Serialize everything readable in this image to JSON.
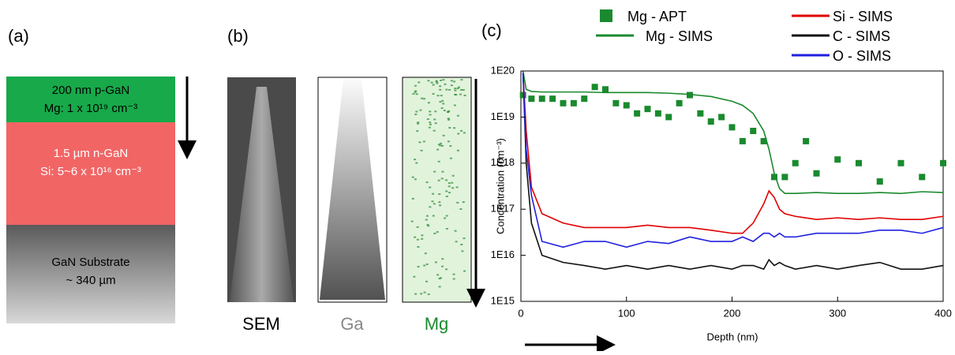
{
  "panel_a": {
    "label": "(a)",
    "layers": [
      {
        "name": "200 nm p-GaN",
        "doping": "Mg: 1 x 10¹⁹ cm⁻³"
      },
      {
        "name": "1.5 µm n-GaN",
        "doping": "Si: 5~6 x 10¹⁶ cm⁻³"
      },
      {
        "name": "GaN Substrate",
        "doping": "~ 340 µm"
      }
    ]
  },
  "panel_b": {
    "label": "(b)",
    "images": [
      "SEM",
      "Ga",
      "Mg"
    ]
  },
  "panel_c": {
    "label": "(c)"
  },
  "chart_data": {
    "type": "line",
    "log_y": true,
    "xlabel": "Depth (nm)",
    "ylabel": "Concentration (cm⁻³)",
    "xlim": [
      0,
      400
    ],
    "xticks": [
      0,
      100,
      200,
      300,
      400
    ],
    "ylim": [
      1000000000000000.0,
      1e+20
    ],
    "yticks": [
      {
        "value": 1000000000000000.0,
        "label": "1E15"
      },
      {
        "value": 1e+16,
        "label": "1E16"
      },
      {
        "value": 1e+17,
        "label": "1E17"
      },
      {
        "value": 1e+18,
        "label": "1E18"
      },
      {
        "value": 1e+19,
        "label": "1E19"
      },
      {
        "value": 1e+20,
        "label": "1E20"
      }
    ],
    "series": [
      {
        "name": "Mg - APT",
        "color": "#1a8a2e",
        "style": "markers",
        "x": [
          2,
          10,
          20,
          30,
          40,
          50,
          60,
          70,
          80,
          90,
          100,
          110,
          120,
          130,
          140,
          150,
          160,
          170,
          180,
          190,
          200,
          210,
          220,
          230,
          240,
          250,
          260,
          270,
          280,
          300,
          320,
          340,
          360,
          380,
          400
        ],
        "values": [
          3e+19,
          2.5e+19,
          2.5e+19,
          2.5e+19,
          2e+19,
          2e+19,
          2.5e+19,
          4.5e+19,
          4e+19,
          2e+19,
          1.8e+19,
          1.2e+19,
          1.5e+19,
          1.2e+19,
          1e+19,
          2e+19,
          3e+19,
          1.2e+19,
          8e+18,
          1e+19,
          6e+18,
          3e+18,
          5e+18,
          3e+18,
          5e+17,
          5e+17,
          1e+18,
          3e+18,
          6e+17,
          1.2e+18,
          1e+18,
          4e+17,
          1e+18,
          5e+17,
          1e+18
        ]
      },
      {
        "name": "Mg - SIMS",
        "color": "#1a8a2e",
        "style": "line",
        "x": [
          2,
          5,
          10,
          20,
          40,
          60,
          80,
          100,
          120,
          140,
          160,
          180,
          200,
          210,
          220,
          230,
          235,
          240,
          245,
          250,
          260,
          280,
          300,
          320,
          340,
          360,
          380,
          400
        ],
        "values": [
          1e+20,
          4e+19,
          3.6e+19,
          3.5e+19,
          3.5e+19,
          3.5e+19,
          3.4e+19,
          3.4e+19,
          3.4e+19,
          3.3e+19,
          3.1e+19,
          2.8e+19,
          2.2e+19,
          1.8e+19,
          1.2e+19,
          5e+18,
          2e+18,
          6e+17,
          2.8e+17,
          2.2e+17,
          2.2e+17,
          2.3e+17,
          2.2e+17,
          2.2e+17,
          2.3e+17,
          2.2e+17,
          2.4e+17,
          2.3e+17
        ]
      },
      {
        "name": "Si - SIMS",
        "color": "#e00000",
        "style": "line",
        "x": [
          2,
          5,
          10,
          20,
          40,
          60,
          80,
          100,
          120,
          140,
          160,
          180,
          200,
          210,
          220,
          230,
          235,
          240,
          245,
          250,
          260,
          280,
          300,
          320,
          340,
          360,
          380,
          400
        ],
        "values": [
          9e+19,
          5e+18,
          3e+17,
          8e+16,
          5e+16,
          4e+16,
          4e+16,
          4e+16,
          4.5e+16,
          4e+16,
          4e+16,
          3.5e+16,
          3e+16,
          3e+16,
          5e+16,
          1.3e+17,
          2.5e+17,
          1.8e+17,
          1e+17,
          8e+16,
          7e+16,
          6e+16,
          6.5e+16,
          6e+16,
          6.5e+16,
          6e+16,
          6e+16,
          7e+16
        ]
      },
      {
        "name": "C - SIMS",
        "color": "#111111",
        "style": "line",
        "x": [
          2,
          5,
          10,
          20,
          40,
          60,
          80,
          100,
          120,
          140,
          160,
          180,
          200,
          210,
          220,
          230,
          235,
          240,
          245,
          250,
          260,
          280,
          300,
          320,
          340,
          360,
          380,
          400
        ],
        "values": [
          9e+19,
          1e+18,
          5e+16,
          1e+16,
          7000000000000000.0,
          6000000000000000.0,
          5000000000000000.0,
          6000000000000000.0,
          5000000000000000.0,
          6000000000000000.0,
          5000000000000000.0,
          6000000000000000.0,
          5000000000000000.0,
          6000000000000000.0,
          6000000000000000.0,
          5000000000000000.0,
          8000000000000000.0,
          6000000000000000.0,
          7000000000000000.0,
          6000000000000000.0,
          5000000000000000.0,
          6000000000000000.0,
          5000000000000000.0,
          6000000000000000.0,
          7000000000000000.0,
          5000000000000000.0,
          5000000000000000.0,
          6000000000000000.0
        ]
      },
      {
        "name": "O - SIMS",
        "color": "#2020e0",
        "style": "line",
        "x": [
          2,
          5,
          10,
          20,
          40,
          60,
          80,
          100,
          120,
          140,
          160,
          180,
          200,
          210,
          220,
          230,
          235,
          240,
          245,
          250,
          260,
          280,
          300,
          320,
          340,
          360,
          380,
          400
        ],
        "values": [
          9e+19,
          2e+18,
          2e+17,
          2e+16,
          1.5e+16,
          2e+16,
          2e+16,
          1.5e+16,
          2e+16,
          1.8e+16,
          2.5e+16,
          2e+16,
          2e+16,
          2.5e+16,
          2e+16,
          3e+16,
          3e+16,
          2.5e+16,
          3e+16,
          2.5e+16,
          2.5e+16,
          3e+16,
          3e+16,
          3e+16,
          3.5e+16,
          3.5e+16,
          3e+16,
          4e+16
        ]
      }
    ]
  }
}
